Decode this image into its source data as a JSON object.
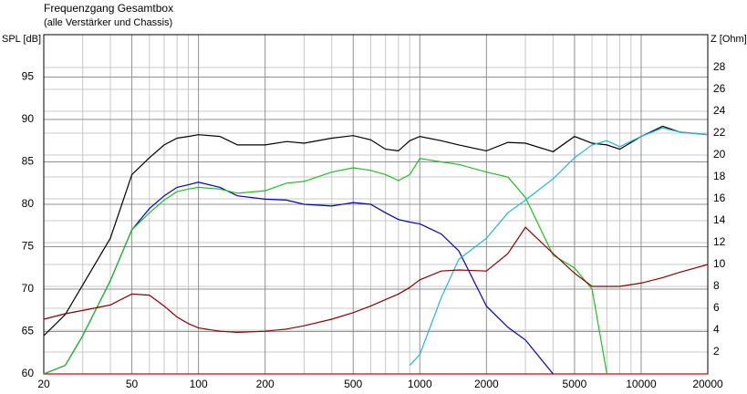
{
  "chart_data": {
    "type": "line",
    "title": "Frequenzgang Gesamtbox",
    "subtitle": "(alle Verstärker und Chassis)",
    "y_label": "SPL [dB]",
    "y2_label": "Z [Ohm]",
    "x_log": true,
    "grid": true,
    "xlim": [
      20,
      20000
    ],
    "xticks": [
      20,
      50,
      100,
      200,
      500,
      1000,
      2000,
      5000,
      10000,
      20000
    ],
    "xminorticks": [
      30,
      40,
      60,
      70,
      80,
      90,
      300,
      400,
      600,
      700,
      800,
      900,
      3000,
      4000,
      6000,
      7000,
      8000,
      9000
    ],
    "ylim": [
      60,
      100
    ],
    "yticks": [
      60,
      65,
      70,
      75,
      80,
      85,
      90,
      95
    ],
    "y2lim": [
      0,
      31
    ],
    "y2ticks": [
      2,
      4,
      6,
      8,
      10,
      12,
      14,
      16,
      18,
      20,
      22,
      24,
      26,
      28
    ],
    "x": [
      20,
      25,
      30,
      40,
      50,
      60,
      70,
      80,
      90,
      100,
      125,
      150,
      200,
      250,
      300,
      400,
      500,
      600,
      700,
      800,
      900,
      1000,
      1250,
      1500,
      2000,
      2500,
      3000,
      4000,
      5000,
      6000,
      7000,
      8000,
      10000,
      12500,
      15000,
      20000
    ],
    "series": [
      {
        "color": "#e00000",
        "values": [
          60,
          60,
          60,
          60,
          60,
          60,
          60,
          60,
          60,
          60,
          60,
          60,
          60,
          60,
          60,
          60,
          60,
          60,
          60,
          60,
          60,
          60,
          60,
          60,
          60,
          60,
          60,
          60,
          60,
          60,
          60,
          60,
          60,
          60,
          60,
          60
        ]
      },
      {
        "color": "#000000",
        "values": [
          64.5,
          67,
          70.5,
          76,
          83.5,
          85.5,
          87,
          87.8,
          88,
          88.2,
          88,
          87,
          87,
          87.4,
          87.2,
          87.8,
          88.1,
          87.6,
          86.5,
          86.3,
          87.5,
          88,
          87.5,
          87,
          86.3,
          87.3,
          87.2,
          86.2,
          88,
          87.2,
          87,
          86.5,
          88,
          89.2,
          88.5,
          88.2
        ]
      },
      {
        "color": "#0000c0",
        "values": [
          60,
          61,
          64.5,
          71,
          77,
          79.5,
          81,
          82,
          82.3,
          82.6,
          82,
          81,
          80.6,
          80.5,
          80,
          79.8,
          80.2,
          80,
          79,
          78.2,
          77.9,
          77.7,
          76.5,
          74.5,
          68,
          65.5,
          64,
          60,
          null,
          null,
          null,
          null,
          null,
          null,
          null,
          null
        ]
      },
      {
        "color": "#20c020",
        "values": [
          60,
          61,
          64.5,
          71,
          77,
          79,
          80.5,
          81.5,
          81.8,
          82,
          81.8,
          81.3,
          81.6,
          82.5,
          82.7,
          83.8,
          84.3,
          84,
          83.5,
          82.8,
          83.5,
          85.4,
          85,
          84.7,
          83.8,
          83.2,
          80.8,
          74,
          72.5,
          70,
          60,
          null,
          null,
          null,
          null,
          null
        ]
      },
      {
        "color": "#20b8d0",
        "values": [
          null,
          null,
          null,
          null,
          null,
          null,
          null,
          null,
          null,
          null,
          null,
          null,
          null,
          null,
          null,
          null,
          null,
          null,
          null,
          null,
          61,
          62.3,
          69,
          73.5,
          76,
          79,
          80.5,
          83,
          85.5,
          87,
          87.5,
          86.8,
          88,
          89,
          88.5,
          88.2
        ]
      },
      {
        "color": "#8b0000",
        "axis": "y2",
        "values": [
          5,
          5.5,
          5.8,
          6.3,
          7.3,
          7.2,
          6.2,
          5.2,
          4.6,
          4.2,
          3.9,
          3.8,
          3.9,
          4.1,
          4.4,
          5,
          5.6,
          6.2,
          6.8,
          7.3,
          7.9,
          8.6,
          9.4,
          9.5,
          9.4,
          11,
          13.4,
          11,
          9.2,
          8,
          8,
          8,
          8.3,
          8.8,
          9.3,
          10
        ]
      }
    ]
  }
}
